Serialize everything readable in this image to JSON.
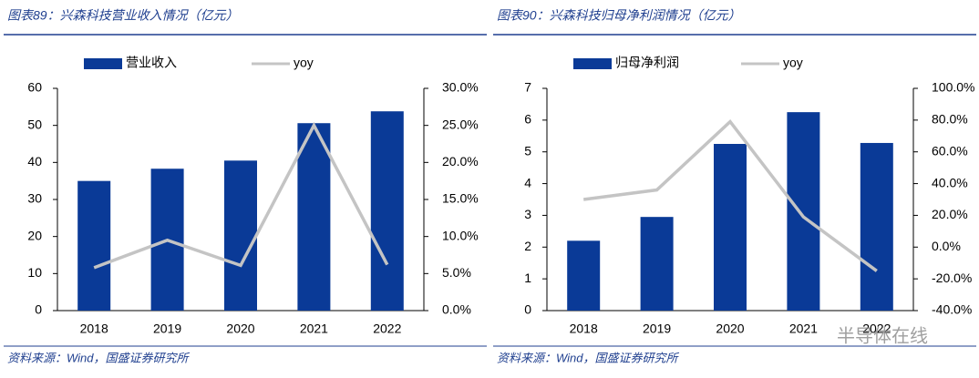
{
  "chart_data": [
    {
      "type": "bar-line",
      "title": "图表89：兴森科技营业收入情况（亿元）",
      "source": "资料来源：Wind，国盛证券研究所",
      "categories": [
        "2018",
        "2019",
        "2020",
        "2021",
        "2022"
      ],
      "series": [
        {
          "name": "营业收入",
          "type": "bar",
          "color": "#0a3a97",
          "values": [
            35.0,
            38.3,
            40.5,
            50.6,
            53.8
          ]
        },
        {
          "name": "yoy",
          "type": "line",
          "axis": "y2",
          "color": "#c4c4c4",
          "values": [
            5.8,
            9.5,
            6.1,
            25.0,
            6.2
          ]
        }
      ],
      "ylim": [
        0,
        60
      ],
      "yticks": [
        0,
        10,
        20,
        30,
        40,
        50,
        60
      ],
      "y2lim": [
        0,
        30
      ],
      "y2ticks": [
        {
          "value": 0,
          "label": "0.0%"
        },
        {
          "value": 5,
          "label": "5.0%"
        },
        {
          "value": 10,
          "label": "10.0%"
        },
        {
          "value": 15,
          "label": "15.0%"
        },
        {
          "value": 20,
          "label": "20.0%"
        },
        {
          "value": 25,
          "label": "25.0%"
        },
        {
          "value": 30,
          "label": "30.0%"
        }
      ]
    },
    {
      "type": "bar-line",
      "title": "图表90：兴森科技归母净利润情况（亿元）",
      "source": "资料来源：Wind，国盛证券研究所",
      "categories": [
        "2018",
        "2019",
        "2020",
        "2021",
        "2022"
      ],
      "series": [
        {
          "name": "归母净利润",
          "type": "bar",
          "color": "#0a3a97",
          "values": [
            2.2,
            2.95,
            5.25,
            6.25,
            5.28
          ]
        },
        {
          "name": "yoy",
          "type": "line",
          "axis": "y2",
          "color": "#c4c4c4",
          "values": [
            30,
            36,
            79,
            19,
            -15
          ]
        }
      ],
      "ylim": [
        0,
        7
      ],
      "yticks": [
        0,
        1,
        2,
        3,
        4,
        5,
        6,
        7
      ],
      "y2lim": [
        -40,
        100
      ],
      "y2ticks": [
        {
          "value": -40,
          "label": "-40.0%"
        },
        {
          "value": -20,
          "label": "-20.0%"
        },
        {
          "value": 0,
          "label": "0.0%"
        },
        {
          "value": 20,
          "label": "20.0%"
        },
        {
          "value": 40,
          "label": "40.0%"
        },
        {
          "value": 60,
          "label": "60.0%"
        },
        {
          "value": 80,
          "label": "80.0%"
        },
        {
          "value": 100,
          "label": "100.0%"
        }
      ]
    }
  ],
  "watermark": "半导体在线"
}
